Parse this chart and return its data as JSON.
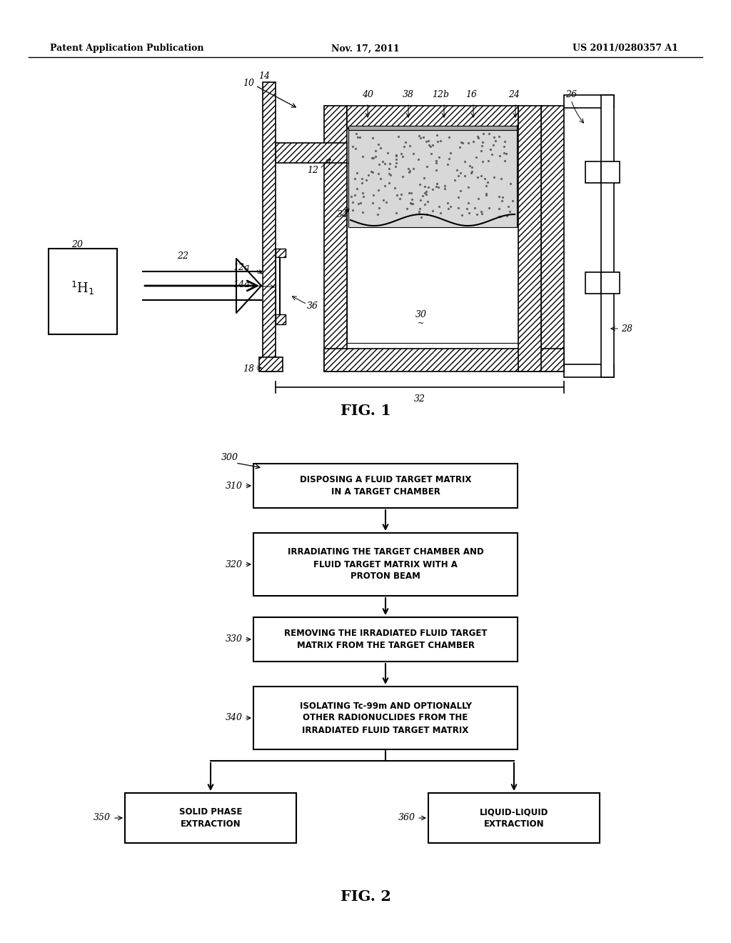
{
  "bg_color": "#ffffff",
  "header_left": "Patent Application Publication",
  "header_center": "Nov. 17, 2011",
  "header_right": "US 2011/0280357 A1",
  "fig1_label": "FIG. 1",
  "fig2_label": "FIG. 2"
}
